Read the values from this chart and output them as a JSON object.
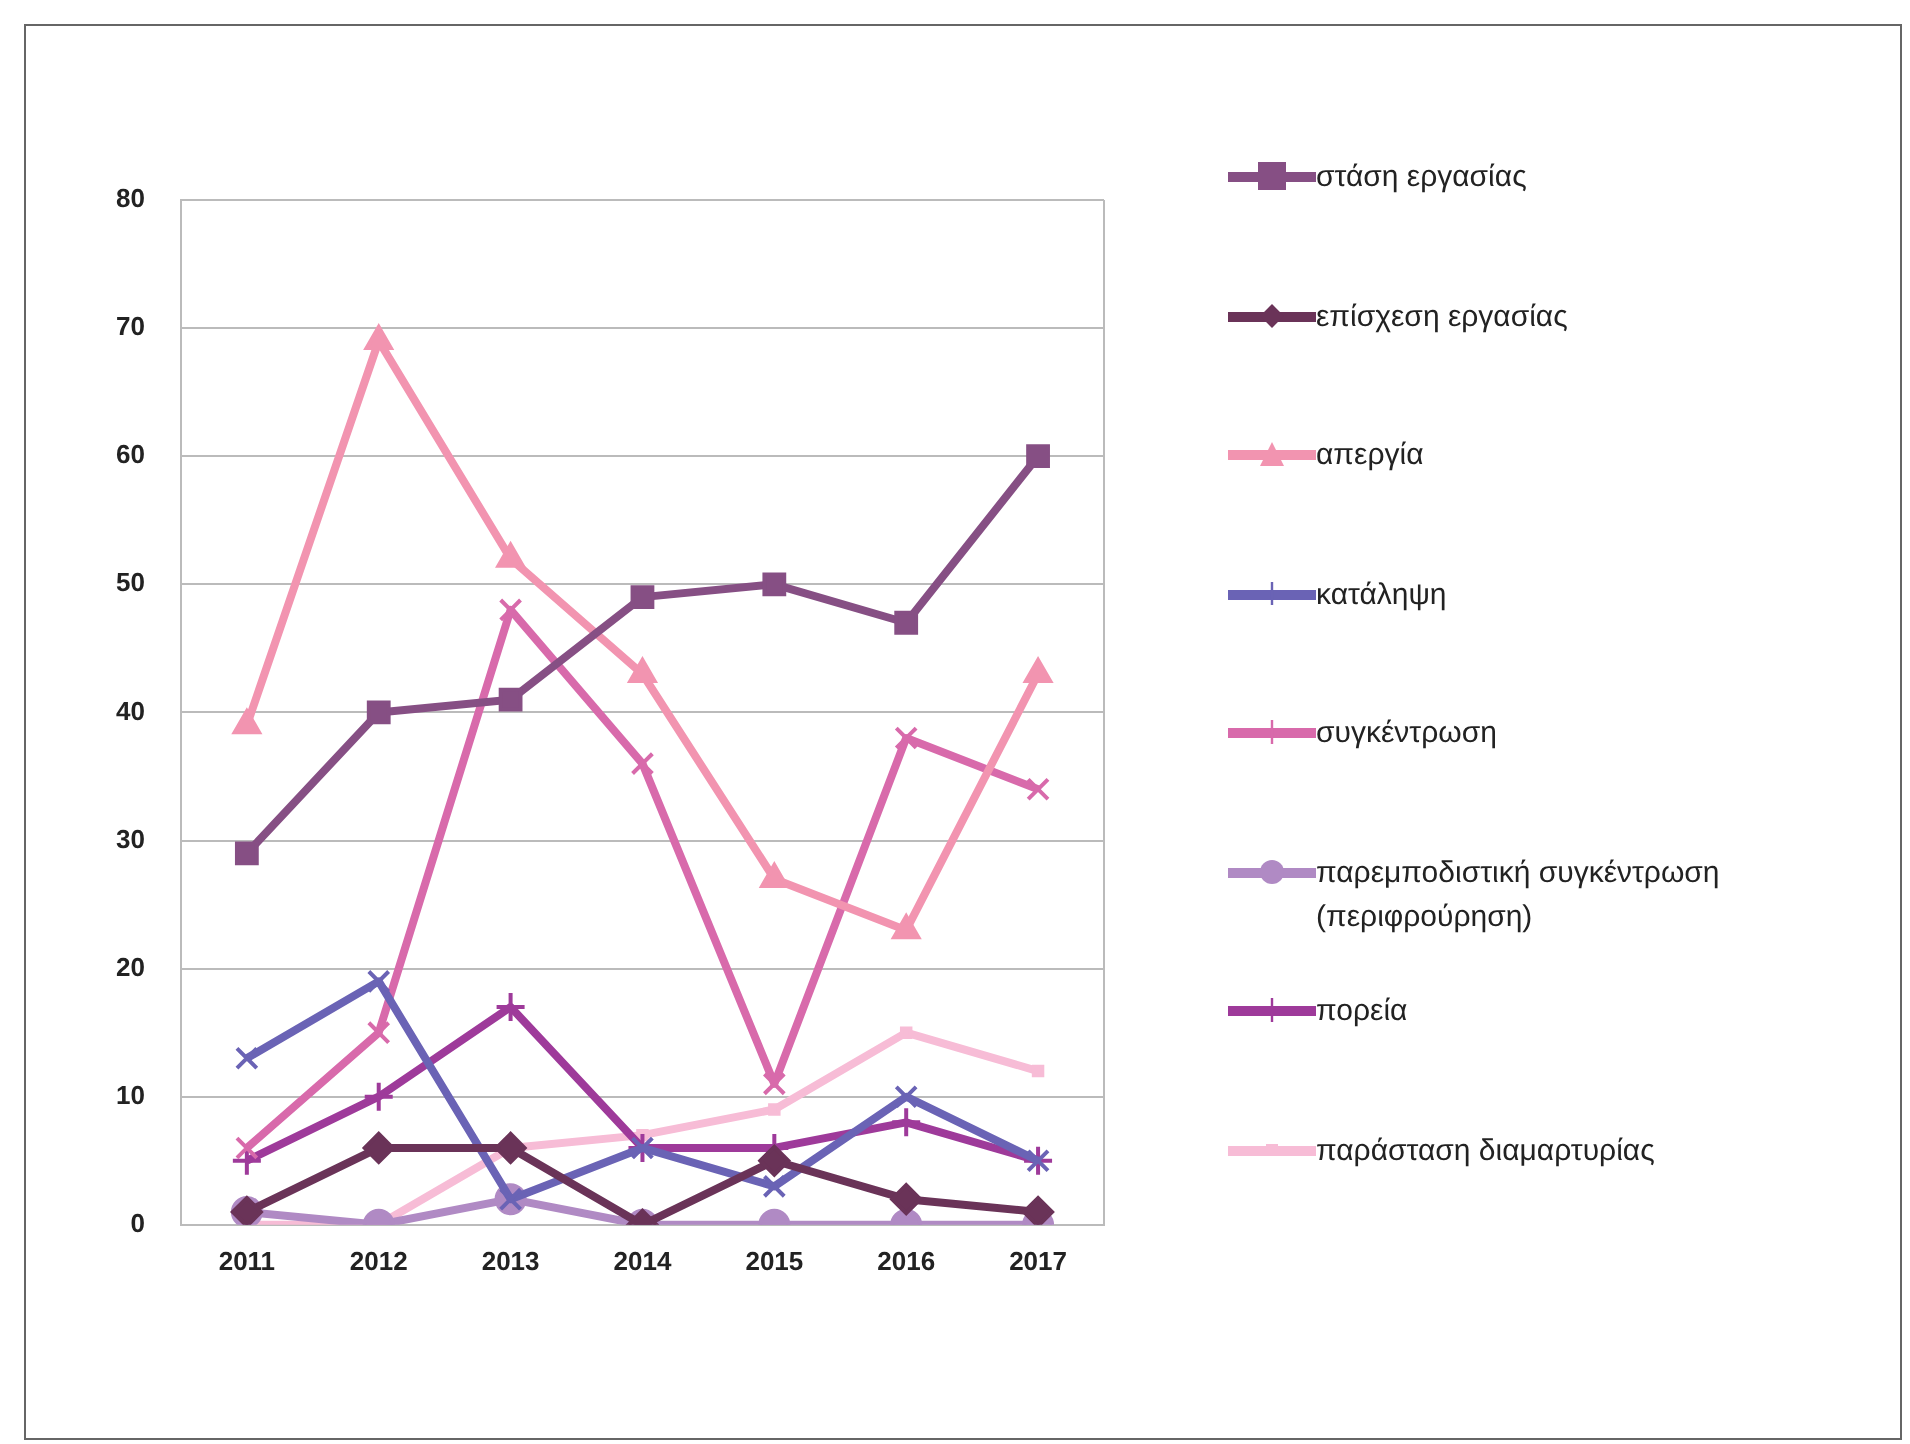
{
  "chart_data": {
    "type": "line",
    "categories": [
      "2011",
      "2012",
      "2013",
      "2014",
      "2015",
      "2016",
      "2017"
    ],
    "series": [
      {
        "name": "στάση εργασίας",
        "color": "#864f84",
        "marker": "square",
        "values": [
          29,
          40,
          41,
          49,
          50,
          47,
          60
        ]
      },
      {
        "name": "επίσχεση εργασίας",
        "color": "#6a3358",
        "marker": "diamond",
        "values": [
          1,
          6,
          6,
          0,
          5,
          2,
          1
        ]
      },
      {
        "name": "απεργία",
        "color": "#f294b0",
        "marker": "triangle",
        "values": [
          39,
          69,
          52,
          43,
          27,
          23,
          43
        ]
      },
      {
        "name": "κατάληψη",
        "color": "#6a63b5",
        "marker": "cross",
        "values": [
          13,
          19,
          2,
          6,
          3,
          10,
          5
        ]
      },
      {
        "name": "συγκέντρωση",
        "color": "#d86aab",
        "marker": "cross",
        "values": [
          6,
          15,
          48,
          36,
          11,
          38,
          34
        ]
      },
      {
        "name": "παρεμποδιστική συγκέντρωση (περιφρούρηση)",
        "color": "#b08ac4",
        "marker": "circle",
        "values": [
          1,
          0,
          2,
          0,
          0,
          0,
          0
        ]
      },
      {
        "name": "πορεία",
        "color": "#9e3a9a",
        "marker": "cross",
        "values": [
          5,
          10,
          17,
          6,
          6,
          8,
          5
        ]
      },
      {
        "name": "παράσταση διαμαρτυρίας",
        "color": "#f7bcd6",
        "marker": "square",
        "values": [
          0,
          0,
          6,
          7,
          9,
          15,
          12
        ]
      }
    ],
    "ylim": [
      0,
      80
    ],
    "yticks": [
      0,
      10,
      20,
      30,
      40,
      50,
      60,
      70,
      80
    ],
    "grid": "y",
    "legend": "right"
  }
}
